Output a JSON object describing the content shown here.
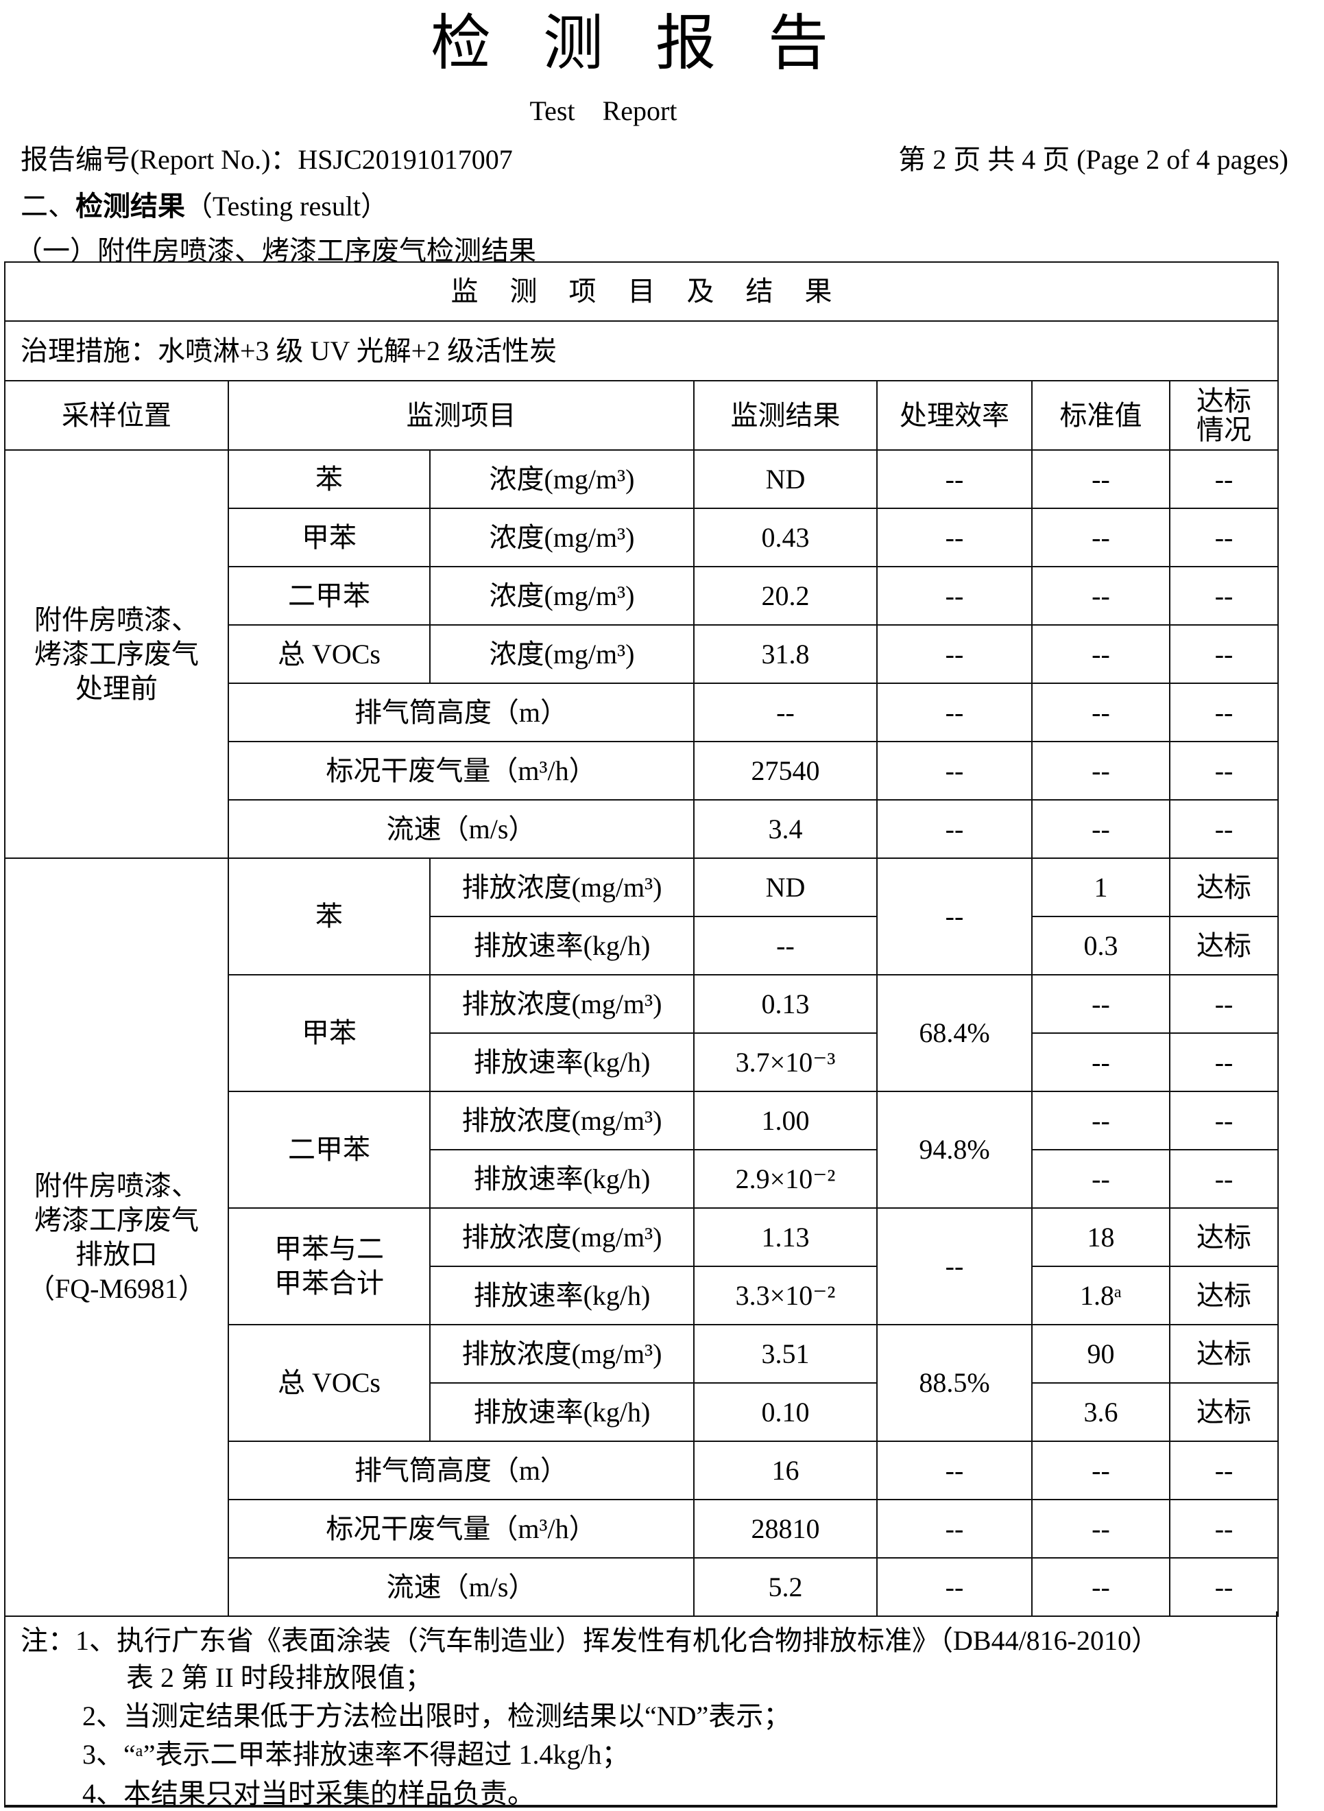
{
  "header": {
    "title": "检测报告",
    "subtitle": "Test Report",
    "report_no": "报告编号(Report No.)：HSJC20191017007",
    "page_info": "第 2 页  共 4 页  (Page 2 of 4 pages)",
    "section_prefix": "二、",
    "section_bold": "检测结果",
    "section_en": "（Testing result）",
    "subsection": "（一）附件房喷漆、烤漆工序废气检测结果"
  },
  "table": {
    "banner": "监测项目及结果",
    "measure": "治理措施：水喷淋+3 级 UV 光解+2 级活性炭",
    "columns": [
      "采样位置",
      "监测项目",
      "监测结果",
      "处理效率",
      "标准值",
      "达标情况"
    ],
    "sections": [
      {
        "location": [
          "附件房喷漆、",
          "烤漆工序废气",
          "处理前"
        ],
        "groups": [
          {
            "item": "苯",
            "efficiency": "--",
            "rows": [
              {
                "param": "浓度(mg/m³)",
                "result": "ND",
                "std": "--",
                "status": "--"
              }
            ]
          },
          {
            "item": "甲苯",
            "efficiency": "--",
            "rows": [
              {
                "param": "浓度(mg/m³)",
                "result": "0.43",
                "std": "--",
                "status": "--"
              }
            ]
          },
          {
            "item": "二甲苯",
            "efficiency": "--",
            "rows": [
              {
                "param": "浓度(mg/m³)",
                "result": "20.2",
                "std": "--",
                "status": "--"
              }
            ]
          },
          {
            "item": "总 VOCs",
            "efficiency": "--",
            "rows": [
              {
                "param": "浓度(mg/m³)",
                "result": "31.8",
                "std": "--",
                "status": "--"
              }
            ]
          },
          {
            "item": "排气筒高度（m）",
            "efficiency": "--",
            "rows": [
              {
                "result": "--",
                "std": "--",
                "status": "--"
              }
            ]
          },
          {
            "item": "标况干废气量（m³/h）",
            "efficiency": "--",
            "rows": [
              {
                "result": "27540",
                "std": "--",
                "status": "--"
              }
            ]
          },
          {
            "item": "流速（m/s）",
            "efficiency": "--",
            "rows": [
              {
                "result": "3.4",
                "std": "--",
                "status": "--"
              }
            ]
          }
        ]
      },
      {
        "location": [
          "附件房喷漆、",
          "烤漆工序废气",
          "排放口",
          "（FQ-M6981）"
        ],
        "groups": [
          {
            "item": "苯",
            "efficiency": "--",
            "rows": [
              {
                "param": "排放浓度(mg/m³)",
                "result": "ND",
                "std": "1",
                "status": "达标"
              },
              {
                "param": "排放速率(kg/h)",
                "result": "--",
                "std": "0.3",
                "status": "达标"
              }
            ]
          },
          {
            "item": "甲苯",
            "efficiency": "68.4%",
            "rows": [
              {
                "param": "排放浓度(mg/m³)",
                "result": "0.13",
                "std": "--",
                "status": "--"
              },
              {
                "param": "排放速率(kg/h)",
                "result": "3.7×10⁻³",
                "std": "--",
                "status": "--"
              }
            ]
          },
          {
            "item": "二甲苯",
            "efficiency": "94.8%",
            "rows": [
              {
                "param": "排放浓度(mg/m³)",
                "result": "1.00",
                "std": "--",
                "status": "--"
              },
              {
                "param": "排放速率(kg/h)",
                "result": "2.9×10⁻²",
                "std": "--",
                "status": "--"
              }
            ]
          },
          {
            "item": "甲苯与二甲苯合计",
            "efficiency": "--",
            "rows": [
              {
                "param": "排放浓度(mg/m³)",
                "result": "1.13",
                "std": "18",
                "status": "达标"
              },
              {
                "param": "排放速率(kg/h)",
                "result": "3.3×10⁻²",
                "std": "1.8ᵃ",
                "status": "达标"
              }
            ]
          },
          {
            "item": "总 VOCs",
            "efficiency": "88.5%",
            "rows": [
              {
                "param": "排放浓度(mg/m³)",
                "result": "3.51",
                "std": "90",
                "status": "达标"
              },
              {
                "param": "排放速率(kg/h)",
                "result": "0.10",
                "std": "3.6",
                "status": "达标"
              }
            ]
          },
          {
            "item": "排气筒高度（m）",
            "efficiency": "--",
            "rows": [
              {
                "result": "16",
                "std": "--",
                "status": "--"
              }
            ]
          },
          {
            "item": "标况干废气量（m³/h）",
            "efficiency": "--",
            "rows": [
              {
                "result": "28810",
                "std": "--",
                "status": "--"
              }
            ]
          },
          {
            "item": "流速（m/s）",
            "efficiency": "--",
            "rows": [
              {
                "result": "5.2",
                "std": "--",
                "status": "--"
              }
            ]
          }
        ]
      }
    ]
  },
  "notes": {
    "line1": "注：1、执行广东省《表面涂装（汽车制造业）挥发性有机化合物排放标准》（DB44/816-2010）",
    "line1b": "表 2 第 II 时段排放限值；",
    "line2": "2、当测定结果低于方法检出限时，检测结果以“ND”表示；",
    "line3": "3、“ᵃ”表示二甲苯排放速率不得超过 1.4kg/h；",
    "line4": "4、本结果只对当时采集的样品负责。"
  }
}
